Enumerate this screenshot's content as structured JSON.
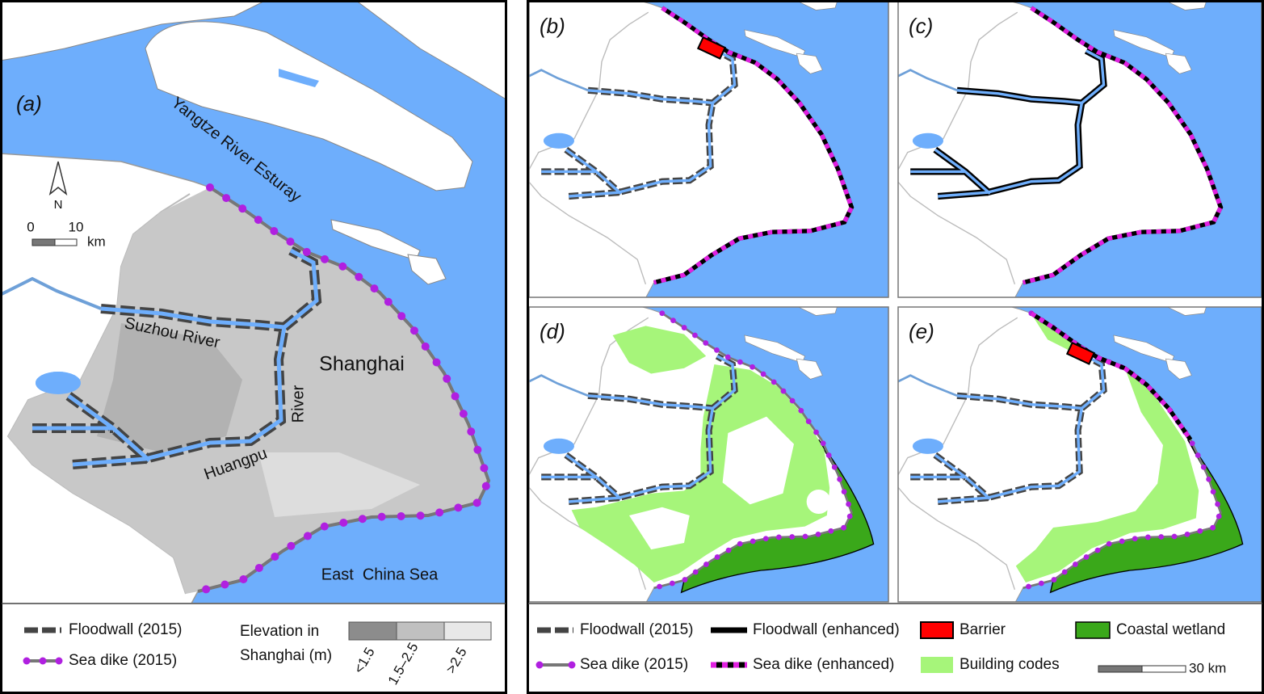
{
  "panel_a": {
    "label": "(a)",
    "estuary": "Yangtze River Esturay",
    "north": "N",
    "scale_ticks": [
      "0",
      "10"
    ],
    "scale_unit": "km",
    "suzhou": "Suzhou River",
    "city": "Shanghai",
    "huangpu_1": "Huangpu",
    "huangpu_2": "River",
    "sea": "East  China Sea"
  },
  "legend_a": {
    "floodwall": "Floodwall (2015)",
    "sea_dike": "Sea dike (2015)",
    "elevation_title": [
      "Elevation in",
      "Shanghai (m)"
    ],
    "elevation_classes": [
      "<1.5",
      "1.5–2.5",
      ">2.5"
    ]
  },
  "panels": [
    "(b)",
    "(c)",
    "(d)",
    "(e)"
  ],
  "legend": {
    "floodwall_2015": "Floodwall (2015)",
    "floodwall_enhanced": "Floodwall (enhanced)",
    "barrier": "Barrier",
    "coastal_wetland": "Coastal wetland",
    "sea_dike_2015": "Sea dike (2015)",
    "sea_dike_enhanced": "Sea dike (enhanced)",
    "building_codes": "Building codes",
    "scale": "30 km"
  }
}
